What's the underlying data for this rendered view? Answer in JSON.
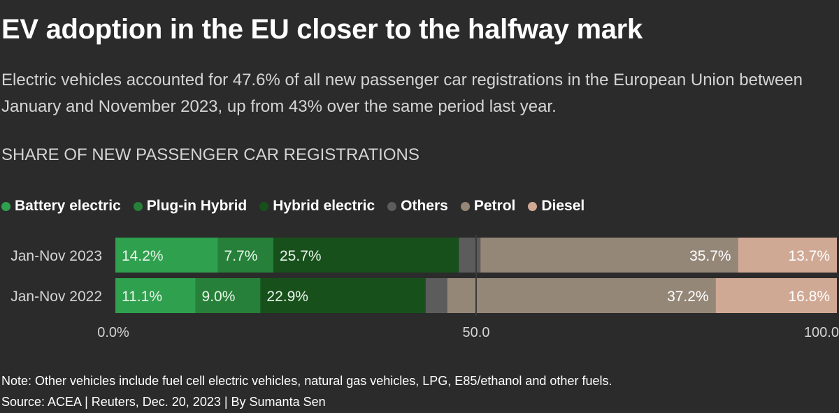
{
  "title": "EV adoption in the EU closer to the halfway mark",
  "subtitle": "Electric vehicles accounted for 47.6% of all new passenger car registrations in the European Union between January and November 2023, up from 43% over the same period last year.",
  "section_label": "SHARE OF NEW PASSENGER CAR REGISTRATIONS",
  "note": "Note: Other vehicles include fuel cell electric vehicles, natural gas vehicles, LPG, E85/ethanol and other fuels.",
  "source": "Source: ACEA | Reuters, Dec. 20, 2023 | By Sumanta Sen",
  "legend": [
    {
      "label": "Battery electric",
      "color": "#2fa04e"
    },
    {
      "label": "Plug-in Hybrid",
      "color": "#268039"
    },
    {
      "label": "Hybrid electric",
      "color": "#18501c"
    },
    {
      "label": "Others",
      "color": "#5c5c5c"
    },
    {
      "label": "Petrol",
      "color": "#958778"
    },
    {
      "label": "Diesel",
      "color": "#d0a995"
    }
  ],
  "chart_data": {
    "type": "bar",
    "orientation": "horizontal",
    "stacked": true,
    "categories": [
      "Jan-Nov 2023",
      "Jan-Nov 2022"
    ],
    "series": [
      {
        "name": "Battery electric",
        "values": [
          14.2,
          11.1
        ],
        "labels": [
          "14.2%",
          "11.1%"
        ]
      },
      {
        "name": "Plug-in Hybrid",
        "values": [
          7.7,
          9.0
        ],
        "labels": [
          "7.7%",
          "9.0%"
        ]
      },
      {
        "name": "Hybrid electric",
        "values": [
          25.7,
          22.9
        ],
        "labels": [
          "25.7%",
          "22.9%"
        ]
      },
      {
        "name": "Others",
        "values": [
          3.0,
          3.0
        ],
        "labels": [
          "",
          ""
        ]
      },
      {
        "name": "Petrol",
        "values": [
          35.7,
          37.2
        ],
        "labels": [
          "35.7%",
          "37.2%"
        ]
      },
      {
        "name": "Diesel",
        "values": [
          13.7,
          16.8
        ],
        "labels": [
          "13.7%",
          "16.8%"
        ]
      }
    ],
    "xlim": [
      0,
      100
    ],
    "ticks": [
      0,
      50,
      100
    ],
    "tick_labels": [
      "0.0%",
      "50.0",
      "100.0"
    ],
    "reference_line": 50,
    "legend_position": "top-left"
  }
}
